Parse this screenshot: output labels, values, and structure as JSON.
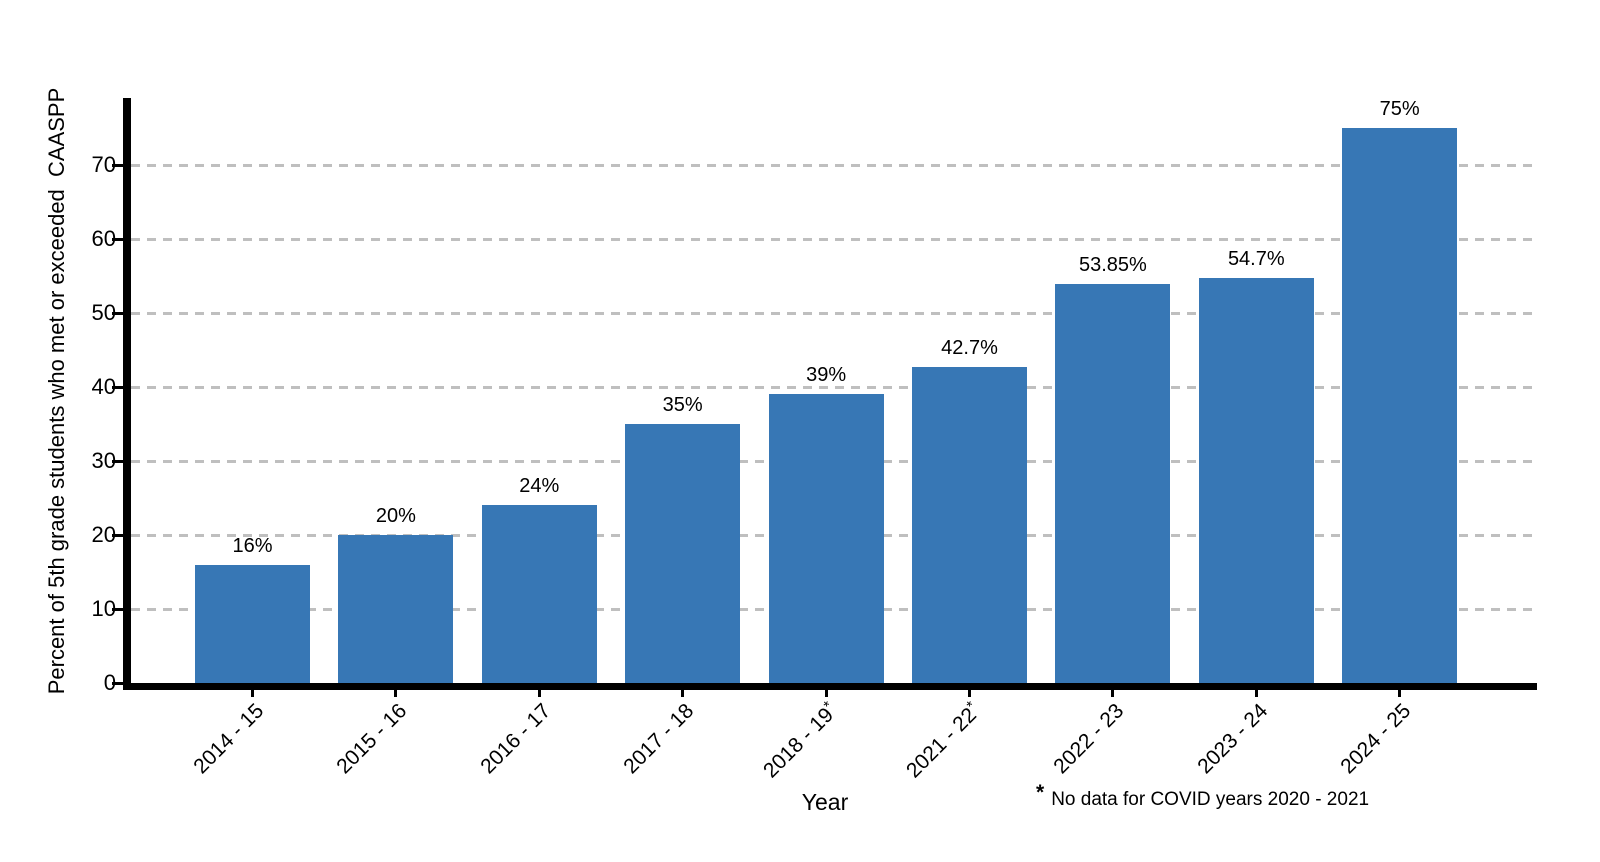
{
  "chart_data": {
    "type": "bar",
    "title": "",
    "xlabel": "Year",
    "ylabel": "Percent of 5th grade students who met or exceeded  CAASPP",
    "categories": [
      "2014 - 15",
      "2015 - 16",
      "2016 - 17",
      "2017 - 18",
      "2018 - 19*",
      "2021 - 22*",
      "2022 - 23",
      "2023 - 24",
      "2024 - 25"
    ],
    "values": [
      16,
      20,
      24,
      35,
      39,
      42.7,
      53.85,
      54.7,
      75
    ],
    "bar_labels": [
      "16%",
      "20%",
      "24%",
      "35%",
      "39%",
      "42.7%",
      "53.85%",
      "54.7%",
      "75%"
    ],
    "yticks": [
      0,
      10,
      20,
      30,
      40,
      50,
      60,
      70
    ],
    "ylim": [
      0,
      79
    ],
    "grid": "horizontal-dashed",
    "legend": "none",
    "bar_color": "#3777b5",
    "gridline_color": "#bfbfbf",
    "axis_color": "#000000",
    "footnote": {
      "marker": "*",
      "text": "No data for COVID years 2020 - 2021"
    }
  }
}
